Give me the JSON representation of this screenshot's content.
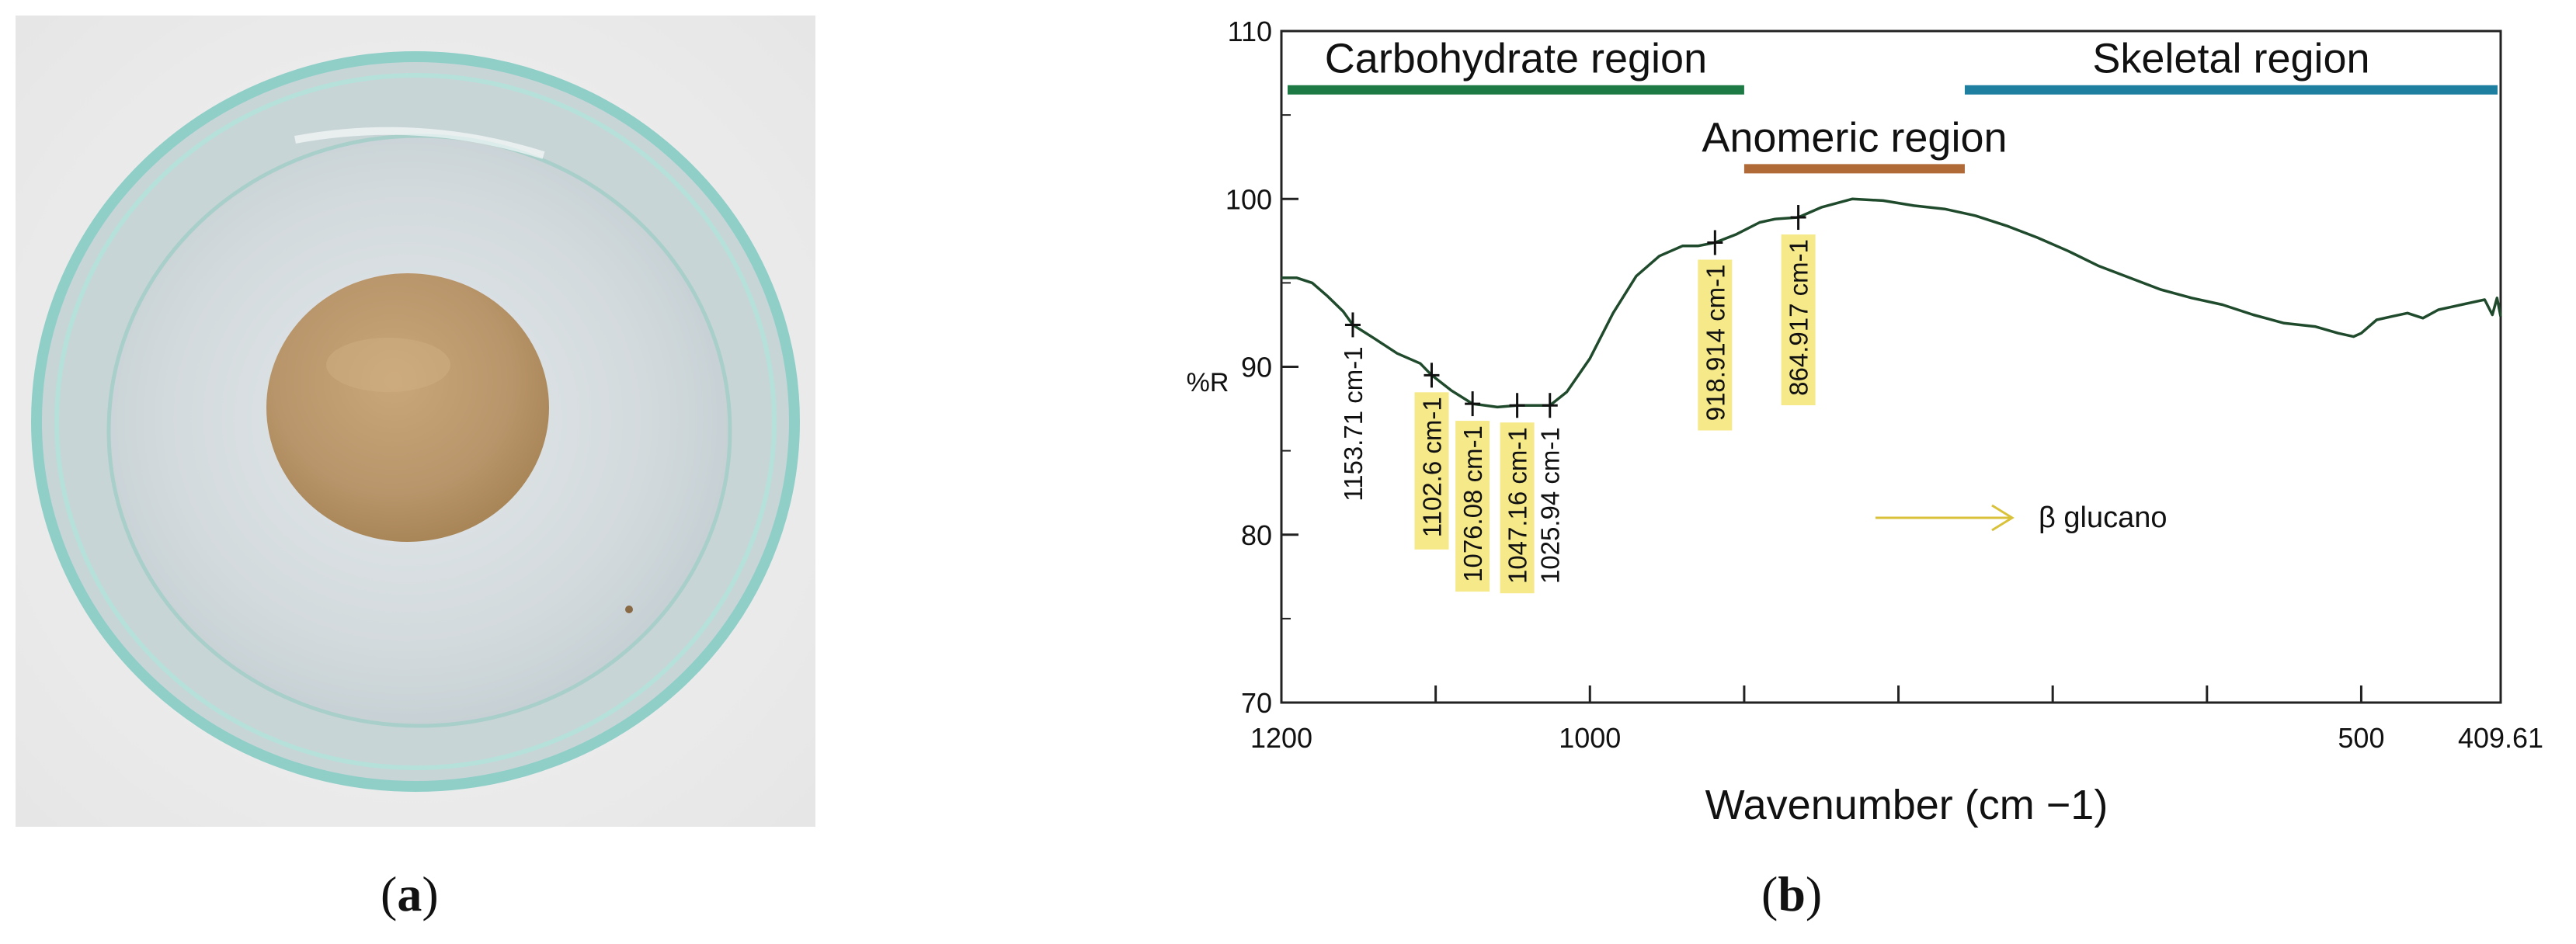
{
  "panels": {
    "a": {
      "label_open": "(",
      "label_letter": "a",
      "label_close": ")"
    },
    "b": {
      "label_open": "(",
      "label_letter": "b",
      "label_close": ")"
    }
  },
  "photo": {
    "description_icon": "petri-dish-with-powder",
    "dish_rim_color": "#9fd3cf",
    "powder_color": "#b8956a"
  },
  "chart_data": {
    "type": "line",
    "ylabel": "%R",
    "xlabel": "Wavenumber (cm −1)",
    "ylim": [
      70,
      110
    ],
    "xlim": [
      1200,
      409.61
    ],
    "y_ticks": [
      70,
      80,
      90,
      100,
      110
    ],
    "x_tick_labels": [
      {
        "value": 1200,
        "label": "1200"
      },
      {
        "value": 1000,
        "label": "1000"
      },
      {
        "value": 500,
        "label": "500"
      },
      {
        "value": 409.61,
        "label": "409.61"
      }
    ],
    "x_unlabeled_ticks": [
      1100,
      900,
      800,
      700,
      600
    ],
    "line_color": "#1f4a2c",
    "series": [
      {
        "x": [
          1200,
          1190,
          1180,
          1170,
          1160,
          1153.71,
          1140,
          1125,
          1110,
          1102.6,
          1090,
          1076.08,
          1060,
          1047.16,
          1035,
          1025.94,
          1015,
          1000,
          985,
          970,
          955,
          940,
          930,
          918.914,
          905,
          890,
          880,
          864.917,
          850,
          830,
          810,
          790,
          770,
          750,
          730,
          710,
          690,
          670,
          650,
          630,
          610,
          590,
          570,
          550,
          530,
          515,
          505,
          500,
          490,
          480,
          470,
          460,
          450,
          440,
          430,
          420,
          415,
          412,
          409.61
        ],
        "y": [
          95.3,
          95.3,
          95.0,
          94.2,
          93.3,
          92.5,
          91.7,
          90.8,
          90.2,
          89.5,
          88.6,
          87.8,
          87.6,
          87.7,
          87.7,
          87.7,
          88.5,
          90.5,
          93.2,
          95.4,
          96.6,
          97.2,
          97.2,
          97.4,
          97.9,
          98.6,
          98.8,
          98.9,
          99.5,
          100.0,
          99.9,
          99.6,
          99.4,
          99.0,
          98.4,
          97.7,
          96.9,
          96.0,
          95.3,
          94.6,
          94.1,
          93.7,
          93.1,
          92.6,
          92.4,
          92.0,
          91.8,
          92.0,
          92.8,
          93.0,
          93.2,
          92.9,
          93.4,
          93.6,
          93.8,
          94.0,
          93.1,
          94.1,
          93.0
        ]
      }
    ],
    "peak_labels": [
      {
        "x": 1153.71,
        "y": 92.5,
        "label": "1153.71 cm-1",
        "highlight": false
      },
      {
        "x": 1102.6,
        "y": 89.5,
        "label": "1102.6 cm-1",
        "highlight": true
      },
      {
        "x": 1076.08,
        "y": 87.8,
        "label": "1076.08 cm-1",
        "highlight": true
      },
      {
        "x": 1047.16,
        "y": 87.7,
        "label": "1047.16 cm-1",
        "highlight": true
      },
      {
        "x": 1025.94,
        "y": 87.7,
        "label": "1025.94 cm-1",
        "highlight": false
      },
      {
        "x": 918.914,
        "y": 97.4,
        "label": "918.914 cm-1",
        "highlight": true
      },
      {
        "x": 864.917,
        "y": 98.9,
        "label": "864.917 cm-1",
        "highlight": true
      }
    ],
    "regions": [
      {
        "label": "Carbohydrate region",
        "x_start": 1200,
        "x_end": 900,
        "y": 106.5,
        "color": "#1e7a45"
      },
      {
        "label": "Anomeric region",
        "x_start": 900,
        "x_end": 757,
        "y": 101.8,
        "color": "#b06a37"
      },
      {
        "label": "Skeletal region",
        "x_start": 757,
        "x_end": 409.61,
        "y": 106.5,
        "color": "#1e7fa0"
      }
    ],
    "legend": {
      "label": "β glucano",
      "arrow_color": "#d9c23a"
    },
    "grid": false
  }
}
